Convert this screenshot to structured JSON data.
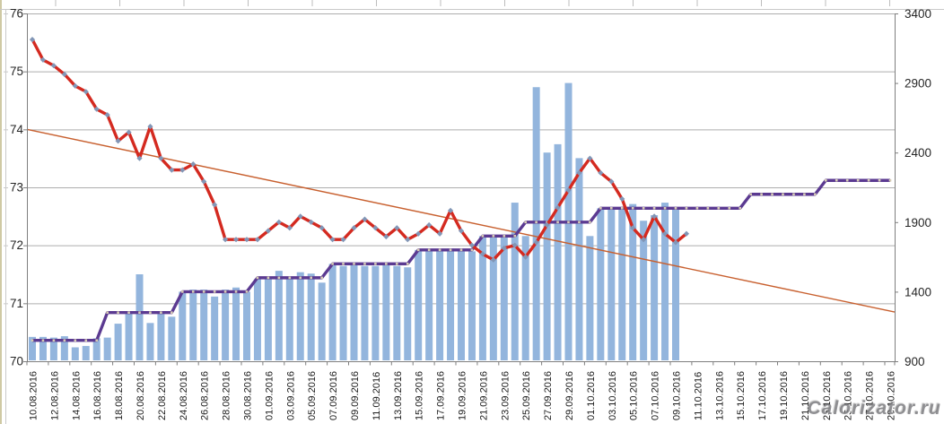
{
  "watermark": "Calorizator.ru",
  "chart_data": {
    "type": "combo",
    "subtype": "bars + stepped line (right axis), marker line + linear trendline (left axis)",
    "title": "",
    "start_date": "10.08.2016",
    "end_date": "29.10.2016",
    "total_days": 81,
    "x_tick_labels": [
      "10.08.2016",
      "12.08.2016",
      "14.08.2016",
      "16.08.2016",
      "18.08.2016",
      "20.08.2016",
      "22.08.2016",
      "24.08.2016",
      "26.08.2016",
      "28.08.2016",
      "30.08.2016",
      "01.09.2016",
      "03.09.2016",
      "05.09.2016",
      "07.09.2016",
      "09.09.2016",
      "11.09.2016",
      "13.09.2016",
      "15.09.2016",
      "17.09.2016",
      "19.09.2016",
      "21.09.2016",
      "23.09.2016",
      "25.09.2016",
      "27.09.2016",
      "29.09.2016",
      "01.10.2016",
      "03.10.2016",
      "05.10.2016",
      "07.10.2016",
      "09.10.2016",
      "11.10.2016",
      "13.10.2016",
      "15.10.2016",
      "17.10.2016",
      "19.10.2016",
      "21.10.2016",
      "23.10.2016",
      "25.10.2016",
      "27.10.2016",
      "29.10.2016"
    ],
    "x_label_step_days": 2,
    "left_axis": {
      "min": 70,
      "max": 76,
      "ticks": [
        76,
        75,
        74,
        73,
        72,
        71,
        70
      ]
    },
    "right_axis": {
      "min": 900,
      "max": 3400,
      "ticks": [
        3400,
        2900,
        2400,
        1900,
        1400,
        900
      ]
    },
    "grid": "horizontal",
    "legend": "none",
    "series": {
      "bars": {
        "axis": "right",
        "start_day": 0,
        "values": [
          1075,
          1075,
          1070,
          1080,
          1000,
          1010,
          1065,
          1070,
          1170,
          1250,
          1525,
          1175,
          1250,
          1220,
          1400,
          1415,
          1415,
          1365,
          1415,
          1430,
          1400,
          1490,
          1500,
          1550,
          1500,
          1540,
          1530,
          1465,
          1600,
          1585,
          1600,
          1585,
          1585,
          1595,
          1585,
          1575,
          1700,
          1700,
          1695,
          1710,
          1700,
          1690,
          1800,
          1800,
          1800,
          2040,
          1800,
          2870,
          2400,
          2460,
          2900,
          2360,
          1800,
          2000,
          2000,
          2000,
          2030,
          1910,
          1950,
          2040,
          2000
        ]
      },
      "red_line": {
        "axis": "left",
        "start_day": 0,
        "values": [
          75.55,
          75.2,
          75.1,
          74.95,
          74.75,
          74.65,
          74.35,
          74.25,
          73.8,
          73.95,
          73.5,
          74.05,
          73.5,
          73.3,
          73.3,
          73.4,
          73.1,
          72.7,
          72.1,
          72.1,
          72.1,
          72.1,
          72.25,
          72.4,
          72.3,
          72.5,
          72.4,
          72.3,
          72.1,
          72.1,
          72.3,
          72.45,
          72.3,
          72.15,
          72.3,
          72.1,
          72.2,
          72.35,
          72.2,
          72.6,
          72.25,
          72.0,
          71.85,
          71.75,
          71.95,
          72.0,
          71.8,
          72.05,
          72.35,
          72.65,
          72.95,
          73.25,
          73.5,
          73.25,
          73.1,
          72.8,
          72.3,
          72.1,
          72.5,
          72.2,
          72.05,
          72.2
        ]
      },
      "purple_step_line": {
        "axis": "right",
        "start_day": 0,
        "values": [
          1050,
          1050,
          1050,
          1050,
          1050,
          1050,
          1050,
          1250,
          1250,
          1250,
          1250,
          1250,
          1250,
          1250,
          1400,
          1400,
          1400,
          1400,
          1400,
          1400,
          1400,
          1500,
          1500,
          1500,
          1500,
          1500,
          1500,
          1500,
          1600,
          1600,
          1600,
          1600,
          1600,
          1600,
          1600,
          1600,
          1700,
          1700,
          1700,
          1700,
          1700,
          1700,
          1800,
          1800,
          1800,
          1800,
          1900,
          1900,
          1900,
          1900,
          1900,
          1900,
          1900,
          2000,
          2000,
          2000,
          2000,
          2000,
          2000,
          2000,
          2000,
          2000,
          2000,
          2000,
          2000,
          2000,
          2000,
          2100,
          2100,
          2100,
          2100,
          2100,
          2100,
          2100,
          2200,
          2200,
          2200,
          2200,
          2200,
          2200,
          2200
        ]
      },
      "orange_trendline": {
        "axis": "left",
        "start_value": 74.0,
        "end_value": 70.85
      }
    },
    "colors": {
      "bar": "#93b5dd",
      "red_line": "#d42a20",
      "red_marker": "#8296b6",
      "purple_line": "#5b3a91",
      "purple_marker": "#d6ccb4",
      "trendline": "#c8602f",
      "gridline": "#adadad",
      "axis": "#7f7f7f",
      "frame": "#c9c9c9",
      "tick_text": "#262626",
      "date_text": "#1a1a1a"
    }
  }
}
